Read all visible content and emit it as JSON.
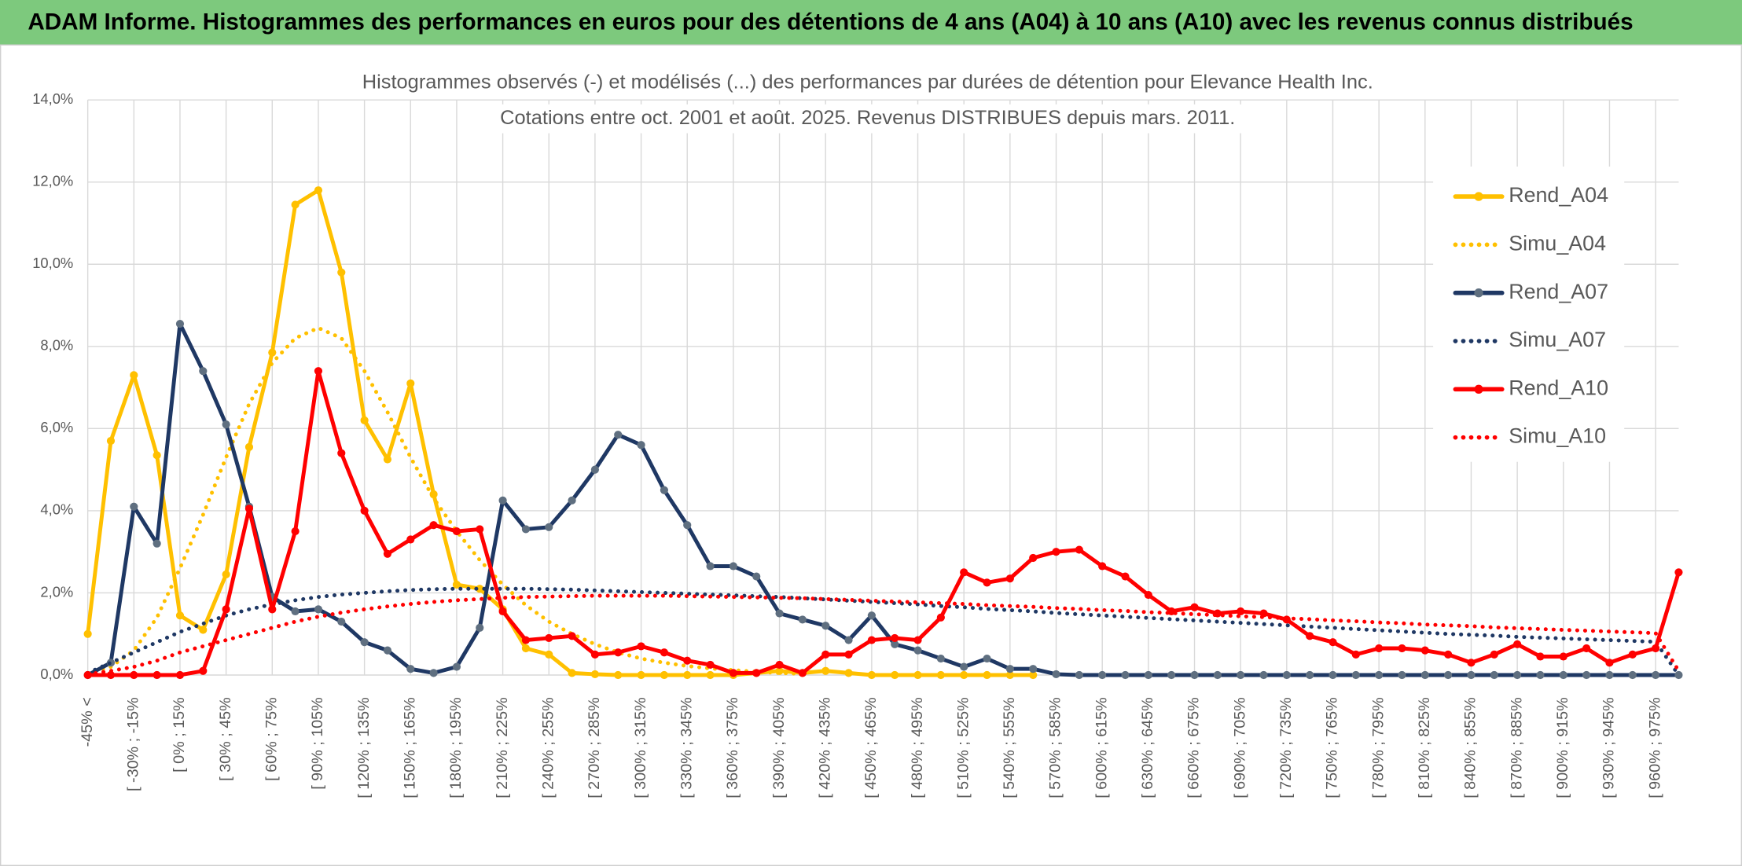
{
  "header": {
    "title": "ADAM Informe. Histogrammes des performances en euros pour des détentions de 4 ans (A04) à 10 ans (A10) avec les revenus connus distribués"
  },
  "chart_data": {
    "type": "line",
    "title": "Histogrammes observés (-) et modélisés (...) des performances par durées de détention pour Elevance Health Inc.",
    "subtitle": "Cotations entre oct. 2001 et août. 2025. Revenus DISTRIBUES depuis mars. 2011.",
    "legend": "right",
    "grid": true,
    "ylim": [
      0,
      14
    ],
    "yticks": [
      {
        "value": 0,
        "label": "0,0%"
      },
      {
        "value": 2,
        "label": "2,0%"
      },
      {
        "value": 4,
        "label": "4,0%"
      },
      {
        "value": 6,
        "label": "6,0%"
      },
      {
        "value": 8,
        "label": "8,0%"
      },
      {
        "value": 10,
        "label": "10,0%"
      },
      {
        "value": 12,
        "label": "12,0%"
      },
      {
        "value": 14,
        "label": "14,0%"
      }
    ],
    "categories": [
      "-45% <",
      null,
      "[ -30% ; -15%",
      null,
      "[ 0% ; 15%",
      null,
      "[ 30% ; 45%",
      null,
      "[ 60% ; 75%",
      null,
      "[ 90% ; 105%",
      null,
      "[ 120% ; 135%",
      null,
      "[ 150% ; 165%",
      null,
      "[ 180% ; 195%",
      null,
      "[ 210% ; 225%",
      null,
      "[ 240% ; 255%",
      null,
      "[ 270% ; 285%",
      null,
      "[ 300% ; 315%",
      null,
      "[ 330% ; 345%",
      null,
      "[ 360% ; 375%",
      null,
      "[ 390% ; 405%",
      null,
      "[ 420% ; 435%",
      null,
      "[ 450% ; 465%",
      null,
      "[ 480% ; 495%",
      null,
      "[ 510% ; 525%",
      null,
      "[ 540% ; 555%",
      null,
      "[ 570% ; 585%",
      null,
      "[ 600% ; 615%",
      null,
      "[ 630% ; 645%",
      null,
      "[ 660% ; 675%",
      null,
      "[ 690% ; 705%",
      null,
      "[ 720% ; 735%",
      null,
      "[ 750% ; 765%",
      null,
      "[ 780% ; 795%",
      null,
      "[ 810% ; 825%",
      null,
      "[ 840% ; 855%",
      null,
      "[ 870% ; 885%",
      null,
      "[ 900% ; 915%",
      null,
      "[ 930% ; 945%",
      null,
      "[ 960% ; 975%",
      null
    ],
    "series": [
      {
        "name": "Rend_A04",
        "color": "#FFC000",
        "dotted": false,
        "values": [
          1.0,
          5.7,
          7.3,
          5.35,
          1.45,
          1.1,
          2.45,
          5.55,
          7.85,
          11.45,
          11.8,
          9.8,
          6.2,
          5.25,
          7.1,
          4.4,
          2.2,
          2.1,
          1.6,
          0.65,
          0.5,
          0.05,
          0.02,
          0,
          0,
          0,
          0,
          0,
          0,
          0.05,
          0.1,
          0.05,
          0.1,
          0.05,
          0,
          0,
          0,
          0,
          0,
          0,
          0,
          0,
          null,
          null,
          null,
          null,
          null,
          null,
          null,
          null,
          null,
          null,
          null,
          null,
          null,
          null,
          null,
          null,
          null,
          null,
          null,
          null,
          null,
          null,
          null,
          null,
          null,
          null,
          null,
          null
        ]
      },
      {
        "name": "Simu_A04",
        "color": "#FFC000",
        "dotted": true,
        "values": [
          0.05,
          0.2,
          0.6,
          1.4,
          2.6,
          3.9,
          5.3,
          6.6,
          7.6,
          8.2,
          8.45,
          8.2,
          7.4,
          6.4,
          5.3,
          4.3,
          3.5,
          2.8,
          2.2,
          1.7,
          1.3,
          1.0,
          0.75,
          0.55,
          0.4,
          0.3,
          0.22,
          0.16,
          0.12,
          0.08,
          0.05,
          0.03,
          null,
          null,
          null,
          null,
          null,
          null,
          null,
          null,
          null,
          null,
          null,
          null,
          null,
          null,
          null,
          null,
          null,
          null,
          null,
          null,
          null,
          null,
          null,
          null,
          null,
          null,
          null,
          null,
          null,
          null,
          null,
          null,
          null,
          null,
          null,
          null,
          null,
          null
        ]
      },
      {
        "name": "Rend_A07",
        "color": "#1F3864",
        "dotted": false,
        "values": [
          0,
          0.3,
          4.1,
          3.2,
          8.55,
          7.4,
          6.1,
          4.1,
          1.9,
          1.55,
          1.6,
          1.3,
          0.8,
          0.6,
          0.15,
          0.05,
          0.2,
          1.15,
          4.25,
          3.55,
          3.6,
          4.25,
          5.0,
          5.85,
          5.6,
          4.5,
          3.65,
          2.65,
          2.65,
          2.4,
          1.5,
          1.35,
          1.2,
          0.85,
          1.45,
          0.75,
          0.6,
          0.4,
          0.2,
          0.4,
          0.15,
          0.15,
          0.02,
          0,
          0,
          0,
          0,
          0,
          0,
          0,
          0,
          0,
          0,
          0,
          0,
          0,
          0,
          0,
          0,
          0,
          0,
          0,
          0,
          0,
          0,
          0,
          0,
          0,
          0,
          0
        ]
      },
      {
        "name": "Simu_A07",
        "color": "#1F3864",
        "dotted": true,
        "values": [
          0.05,
          0.3,
          0.55,
          0.8,
          1.05,
          1.25,
          1.45,
          1.6,
          1.72,
          1.82,
          1.9,
          1.96,
          2.0,
          2.04,
          2.07,
          2.09,
          2.1,
          2.1,
          2.1,
          2.1,
          2.09,
          2.08,
          2.06,
          2.04,
          2.02,
          2.0,
          1.98,
          1.96,
          1.94,
          1.92,
          1.9,
          1.87,
          1.84,
          1.81,
          1.78,
          1.75,
          1.72,
          1.68,
          1.65,
          1.61,
          1.58,
          1.55,
          1.51,
          1.48,
          1.45,
          1.42,
          1.39,
          1.36,
          1.33,
          1.3,
          1.27,
          1.24,
          1.21,
          1.18,
          1.15,
          1.12,
          1.09,
          1.06,
          1.03,
          1.0,
          0.98,
          0.96,
          0.93,
          0.91,
          0.89,
          0.87,
          0.85,
          0.83,
          0.81,
          0.0
        ]
      },
      {
        "name": "Rend_A10",
        "color": "#FF0000",
        "dotted": false,
        "values": [
          0,
          0,
          0,
          0,
          0,
          0.1,
          1.6,
          4.05,
          1.6,
          3.5,
          7.4,
          5.4,
          4.0,
          2.95,
          3.3,
          3.65,
          3.5,
          3.55,
          1.55,
          0.85,
          0.9,
          0.95,
          0.5,
          0.55,
          0.7,
          0.55,
          0.35,
          0.25,
          0.05,
          0.05,
          0.25,
          0.05,
          0.5,
          0.5,
          0.85,
          0.9,
          0.85,
          1.4,
          2.5,
          2.25,
          2.35,
          2.85,
          3.0,
          3.05,
          2.65,
          2.4,
          1.95,
          1.55,
          1.65,
          1.5,
          1.55,
          1.5,
          1.35,
          0.95,
          0.8,
          0.5,
          0.65,
          0.65,
          0.6,
          0.5,
          0.3,
          0.5,
          0.75,
          0.45,
          0.45,
          0.65,
          0.3,
          0.5,
          0.65,
          2.5
        ]
      },
      {
        "name": "Simu_A10",
        "color": "#FF0000",
        "dotted": true,
        "values": [
          0.02,
          0.1,
          0.2,
          0.35,
          0.55,
          0.7,
          0.85,
          1.0,
          1.15,
          1.3,
          1.42,
          1.52,
          1.6,
          1.67,
          1.73,
          1.78,
          1.82,
          1.85,
          1.88,
          1.9,
          1.91,
          1.92,
          1.93,
          1.93,
          1.93,
          1.93,
          1.92,
          1.91,
          1.9,
          1.89,
          1.88,
          1.87,
          1.85,
          1.83,
          1.81,
          1.79,
          1.77,
          1.75,
          1.73,
          1.7,
          1.68,
          1.66,
          1.63,
          1.61,
          1.58,
          1.56,
          1.53,
          1.51,
          1.48,
          1.46,
          1.43,
          1.41,
          1.38,
          1.36,
          1.33,
          1.31,
          1.28,
          1.26,
          1.23,
          1.21,
          1.19,
          1.16,
          1.14,
          1.12,
          1.1,
          1.08,
          1.06,
          1.04,
          1.02,
          0.1
        ]
      }
    ]
  }
}
